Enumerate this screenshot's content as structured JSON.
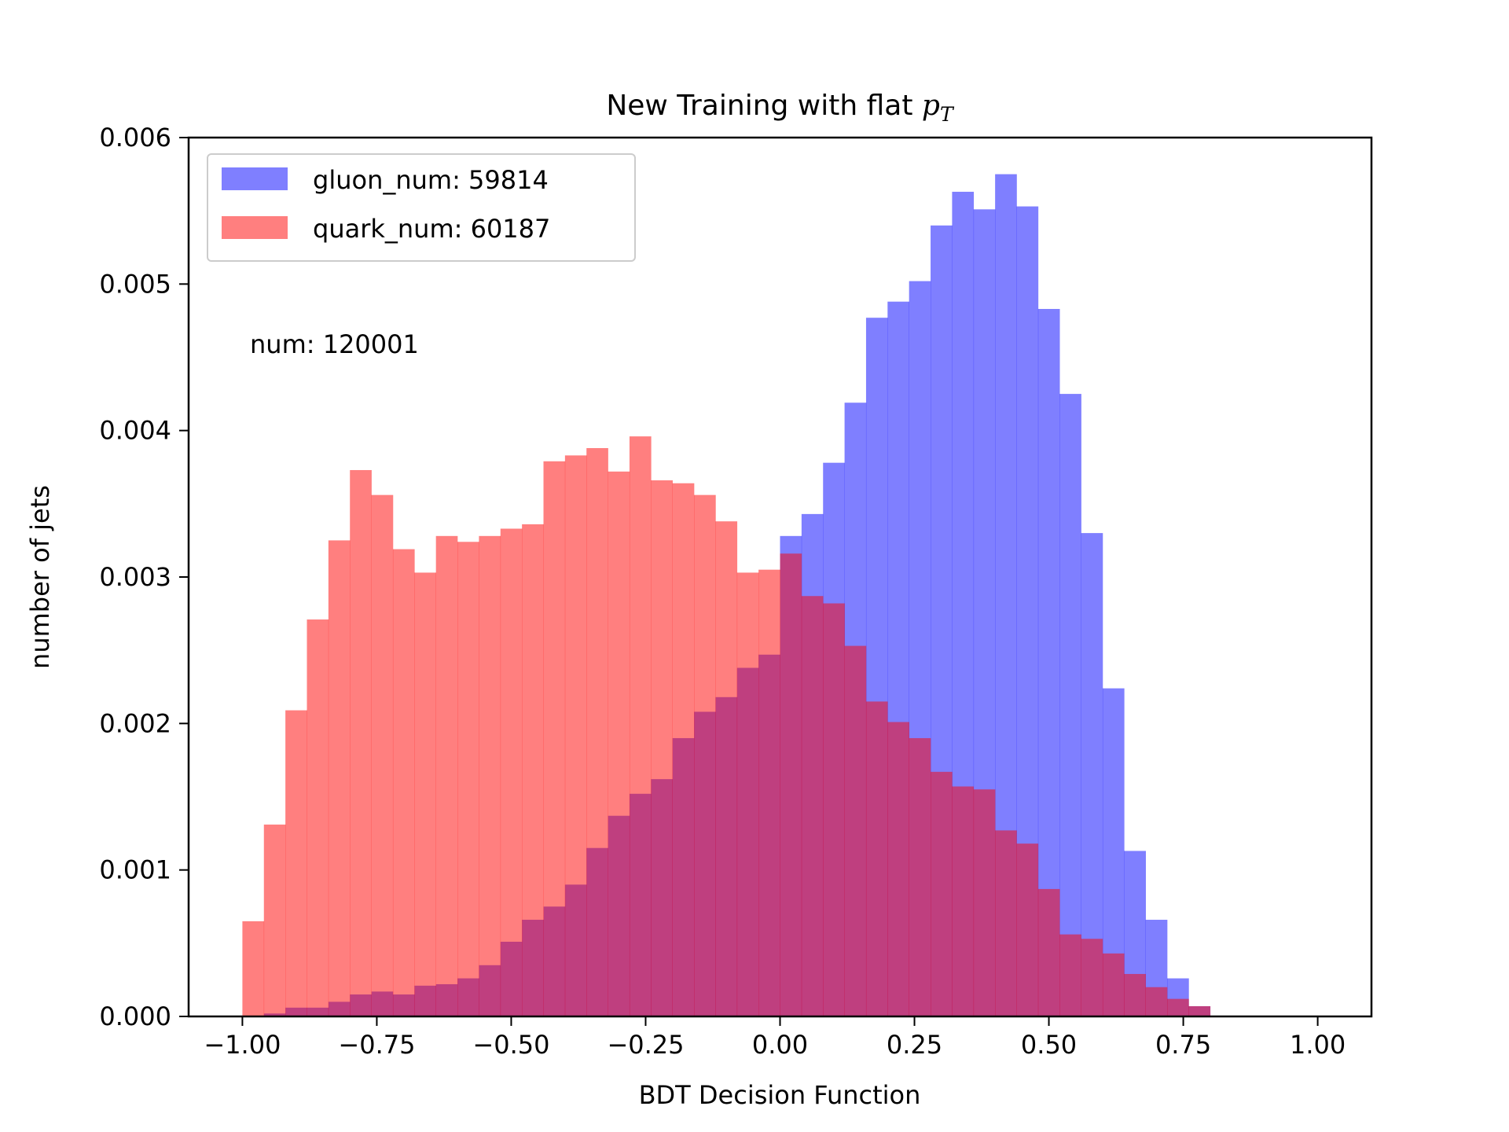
{
  "chart_data": {
    "type": "histogram",
    "title": "New Training with flat ",
    "title_math": "p",
    "title_math_sub": "T",
    "xlabel": "BDT Decision Function",
    "ylabel": "number of jets",
    "xlim": [
      -1.1,
      1.1
    ],
    "ylim": [
      0,
      0.006
    ],
    "xticks": [
      -1.0,
      -0.75,
      -0.5,
      -0.25,
      0.0,
      0.25,
      0.5,
      0.75,
      1.0
    ],
    "xtick_labels": [
      "−1.00",
      "−0.75",
      "−0.50",
      "−0.25",
      "0.00",
      "0.25",
      "0.50",
      "0.75",
      "1.00"
    ],
    "yticks": [
      0,
      0.001,
      0.002,
      0.003,
      0.004,
      0.005,
      0.006
    ],
    "ytick_labels": [
      "0.000",
      "0.001",
      "0.002",
      "0.003",
      "0.004",
      "0.005",
      "0.006"
    ],
    "bins": {
      "start": -1.0,
      "width": 0.04,
      "count": 50
    },
    "series": [
      {
        "name": "gluon_num: 59814",
        "color": "#0000ff",
        "alpha": 0.5,
        "values": [
          0.0,
          2e-05,
          6e-05,
          6e-05,
          0.0001,
          0.00015,
          0.00017,
          0.00015,
          0.00021,
          0.00022,
          0.00026,
          0.00035,
          0.00051,
          0.00066,
          0.00075,
          0.0009,
          0.00115,
          0.00137,
          0.00152,
          0.00162,
          0.0019,
          0.00208,
          0.00218,
          0.00238,
          0.00247,
          0.00328,
          0.00343,
          0.00378,
          0.00419,
          0.00477,
          0.00488,
          0.00502,
          0.0054,
          0.00563,
          0.00551,
          0.00575,
          0.00553,
          0.00483,
          0.00425,
          0.0033,
          0.00224,
          0.00113,
          0.00066,
          0.00026,
          7e-05,
          5e-06,
          0.0,
          0.0,
          0.0,
          0.0
        ]
      },
      {
        "name": "quark_num: 60187",
        "color": "#ff0000",
        "alpha": 0.5,
        "values": [
          0.00065,
          0.00131,
          0.00209,
          0.00271,
          0.00325,
          0.00373,
          0.00356,
          0.00319,
          0.00303,
          0.00328,
          0.00324,
          0.00328,
          0.00333,
          0.00336,
          0.00379,
          0.00383,
          0.00388,
          0.00372,
          0.00396,
          0.00366,
          0.00364,
          0.00356,
          0.00338,
          0.00303,
          0.00305,
          0.00316,
          0.00287,
          0.00282,
          0.00253,
          0.00215,
          0.00201,
          0.0019,
          0.00167,
          0.00157,
          0.00155,
          0.00127,
          0.00118,
          0.00087,
          0.00056,
          0.00053,
          0.00043,
          0.00029,
          0.0002,
          0.00012,
          7e-05,
          0.0,
          0.0,
          0.0,
          0.0,
          0.0
        ]
      }
    ],
    "legend": {
      "location": "upper-left"
    },
    "annotation": "num: 120001"
  }
}
